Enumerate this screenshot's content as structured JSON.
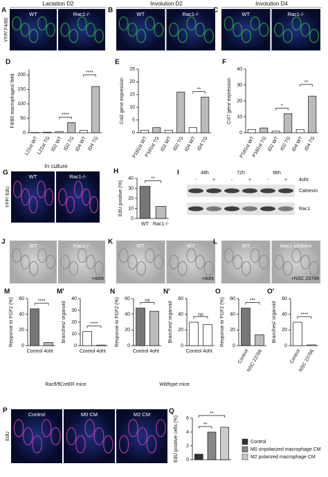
{
  "panels": [
    {
      "letter": "A",
      "header": "Lactation D2",
      "labels": [
        "WT",
        "Rac1-/-"
      ],
      "stain": "YFP/ F4/80"
    },
    {
      "letter": "B",
      "header": "Involution D2",
      "labels": [
        "WT",
        "Rac1-/-"
      ]
    },
    {
      "letter": "C",
      "header": "Involution D4",
      "labels": [
        "WT",
        "Rac1-/-"
      ]
    },
    {
      "letter": "G",
      "header": "In culture",
      "labels": [
        "WT",
        "Rac1-/-"
      ],
      "stain": "YFP/ EdU"
    },
    {
      "letter": "J",
      "labels": [
        "WT",
        "Rac1-/-"
      ],
      "note": "+4oht"
    },
    {
      "letter": "K",
      "labels": [
        "WT",
        "WT"
      ],
      "note": "+4oht"
    },
    {
      "letter": "L",
      "labels": [
        "WT",
        "Rac1 inhibitor"
      ],
      "note": "+NSC 23766"
    },
    {
      "letter": "P",
      "labels": [
        "Control",
        "M0 CM",
        "M2 CM"
      ],
      "stain": "EdU"
    }
  ],
  "blot": {
    "letter": "I",
    "times": [
      "48h",
      "72h",
      "96h"
    ],
    "signs": [
      "-",
      "+",
      "-",
      "+",
      "-",
      "+"
    ],
    "treatment": "4oht",
    "bands": [
      "Calnexin",
      "Rac1"
    ]
  },
  "captions": [
    "Racfl/flCreER mice",
    "Wildtype mice"
  ],
  "chart_data": [
    {
      "type": "bar",
      "letter": "D",
      "y_label": "F4/80 macrophages/ field",
      "categories": [
        "L21st WT",
        "L21st TG",
        "ID2 WT",
        "ID2 TG",
        "ID4 WT",
        "ID4 TG"
      ],
      "values": [
        1,
        2,
        4,
        35,
        8,
        160
      ],
      "colors": [
        "#ffffff",
        "#bbbbbb",
        "#ffffff",
        "#bbbbbb",
        "#ffffff",
        "#bbbbbb"
      ],
      "ylim": [
        0,
        220
      ],
      "yticks": [
        0,
        50,
        100,
        150,
        200
      ],
      "annotations": [
        "****",
        "****"
      ]
    },
    {
      "type": "bar",
      "letter": "E",
      "y_label": "Col2 gene expression",
      "categories": [
        "P181st WT",
        "P181st TG",
        "ID2 WT",
        "ID2 TG",
        "ID4 WT",
        "ID4 TG"
      ],
      "values": [
        1,
        2,
        1,
        16,
        2,
        14
      ],
      "colors": [
        "#ffffff",
        "#bbbbbb",
        "#ffffff",
        "#bbbbbb",
        "#ffffff",
        "#bbbbbb"
      ],
      "ylim": [
        0,
        25
      ],
      "yticks": [
        0,
        5,
        10,
        15,
        20,
        25
      ],
      "annotations": [
        "**"
      ]
    },
    {
      "type": "bar",
      "letter": "F",
      "y_label": "Ccl7 gene expression",
      "categories": [
        "P181st WT",
        "P181st TG",
        "ID2 WT",
        "ID2 TG",
        "ID4 WT",
        "ID4 TG"
      ],
      "values": [
        2,
        3,
        1,
        12,
        2,
        23
      ],
      "colors": [
        "#ffffff",
        "#bbbbbb",
        "#ffffff",
        "#bbbbbb",
        "#ffffff",
        "#bbbbbb"
      ],
      "ylim": [
        0,
        40
      ],
      "yticks": [
        0,
        10,
        20,
        30,
        40
      ],
      "annotations": [
        "*",
        "**"
      ]
    },
    {
      "type": "bar",
      "letter": "H",
      "y_label": "EdU positive (%)",
      "categories": [
        "WT",
        "Rac1-/-"
      ],
      "values": [
        32,
        12
      ],
      "colors": [
        "#777777",
        "#bbbbbb"
      ],
      "ylim": [
        0,
        40
      ],
      "yticks": [
        0,
        10,
        20,
        30,
        40
      ],
      "annotations": [
        "**"
      ]
    },
    {
      "type": "bar",
      "letter": "M",
      "y_label": "Response to FGF2 (%)",
      "categories": [
        "Control",
        "4oht"
      ],
      "values": [
        47,
        4
      ],
      "colors": [
        "#777777",
        "#bbbbbb"
      ],
      "ylim": [
        0,
        60
      ],
      "yticks": [
        0,
        20,
        40,
        60
      ],
      "annotations": [
        "****"
      ]
    },
    {
      "type": "bar",
      "letter": "M'",
      "y_label": "Branches/ organoid",
      "categories": [
        "Control",
        "4oht"
      ],
      "values": [
        12,
        0.5
      ],
      "colors": [
        "#ffffff",
        "#ffffff"
      ],
      "ylim": [
        0,
        40
      ],
      "yticks": [
        0,
        10,
        20,
        30,
        40
      ],
      "annotations": [
        "****"
      ]
    },
    {
      "type": "bar",
      "letter": "N",
      "y_label": "Response to FGF2 (%)",
      "categories": [
        "Control",
        "4oht"
      ],
      "values": [
        48,
        44
      ],
      "colors": [
        "#777777",
        "#bbbbbb"
      ],
      "ylim": [
        0,
        60
      ],
      "yticks": [
        0,
        20,
        40,
        60
      ],
      "annotations": [
        "ns"
      ]
    },
    {
      "type": "bar",
      "letter": "N'",
      "y_label": "Branches/ organoid",
      "categories": [
        "Control",
        "4oht"
      ],
      "values": [
        30,
        27
      ],
      "colors": [
        "#ffffff",
        "#ffffff"
      ],
      "ylim": [
        0,
        60
      ],
      "yticks": [
        0,
        20,
        40,
        60
      ],
      "annotations": [
        "ns"
      ]
    },
    {
      "type": "bar",
      "letter": "O",
      "y_label": "Response to FGF2 (%)",
      "categories": [
        "Control",
        "NSC 23766"
      ],
      "values": [
        48,
        14
      ],
      "colors": [
        "#777777",
        "#bbbbbb"
      ],
      "ylim": [
        0,
        60
      ],
      "yticks": [
        0,
        20,
        40,
        60
      ],
      "annotations": [
        "***"
      ]
    },
    {
      "type": "bar",
      "letter": "O'",
      "y_label": "Branches/ organoid",
      "categories": [
        "Control",
        "NSC 23766"
      ],
      "values": [
        30,
        1
      ],
      "colors": [
        "#ffffff",
        "#ffffff"
      ],
      "ylim": [
        0,
        60
      ],
      "yticks": [
        0,
        20,
        40,
        60
      ],
      "annotations": [
        "****"
      ]
    },
    {
      "type": "bar",
      "letter": "Q",
      "y_label": "EdU positive cells (%)",
      "categories": [
        "Control",
        "M0 unpolarized macrophage CM",
        "M2 polarized macrophage CM"
      ],
      "values": [
        0.8,
        4,
        4.7
      ],
      "colors": [
        "#333333",
        "#888888",
        "#cccccc"
      ],
      "ylim": [
        0,
        6
      ],
      "yticks": [
        0,
        2,
        4,
        6
      ],
      "annotations": [
        "**",
        "**"
      ],
      "legend": true
    }
  ]
}
